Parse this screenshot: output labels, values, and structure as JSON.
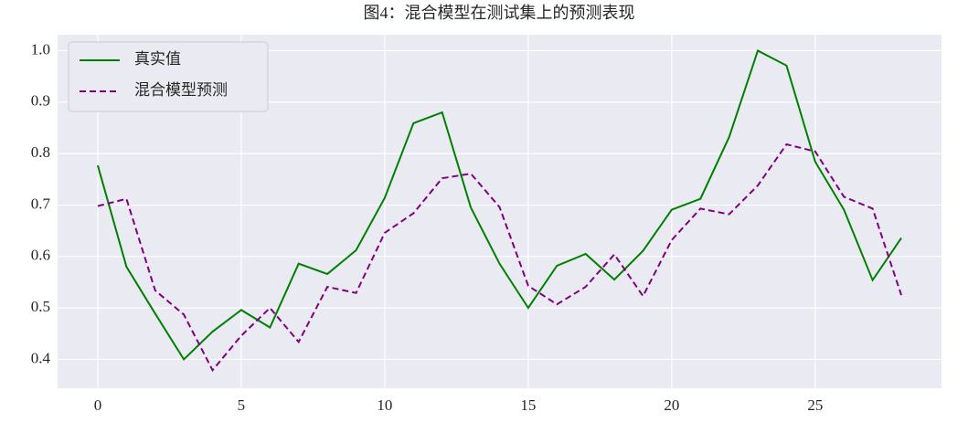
{
  "chart_data": {
    "type": "line",
    "title": "图4：混合模型在测试集上的预测表现",
    "x": [
      0,
      1,
      2,
      3,
      4,
      5,
      6,
      7,
      8,
      9,
      10,
      11,
      12,
      13,
      14,
      15,
      16,
      17,
      18,
      19,
      20,
      21,
      22,
      23,
      24,
      25,
      26,
      27,
      28
    ],
    "series": [
      {
        "name": "真实值",
        "color": "#008000",
        "dash": "solid",
        "values": [
          0.777,
          0.58,
          0.489,
          0.4,
          0.454,
          0.496,
          0.462,
          0.586,
          0.566,
          0.612,
          0.714,
          0.859,
          0.88,
          0.695,
          0.586,
          0.5,
          0.582,
          0.605,
          0.555,
          0.611,
          0.691,
          0.712,
          0.832,
          1.0,
          0.971,
          0.784,
          0.691,
          0.554,
          0.636
        ]
      },
      {
        "name": "混合模型预测",
        "color": "#800080",
        "dash": "dashed",
        "values": [
          0.698,
          0.712,
          0.534,
          0.487,
          0.379,
          0.446,
          0.5,
          0.434,
          0.541,
          0.529,
          0.646,
          0.684,
          0.752,
          0.761,
          0.696,
          0.543,
          0.507,
          0.541,
          0.604,
          0.523,
          0.632,
          0.693,
          0.682,
          0.738,
          0.818,
          0.804,
          0.716,
          0.693,
          0.525
        ]
      }
    ],
    "xlim": [
      -1.4,
      29.4
    ],
    "xticks": [
      0,
      5,
      10,
      15,
      20,
      25
    ],
    "ylim": [
      0.344,
      1.031
    ],
    "yticks": [
      0.4,
      0.5,
      0.6,
      0.7,
      0.8,
      0.9,
      {
        "value": 1,
        "label": "1.0"
      }
    ],
    "grid": true,
    "legend": "upper left"
  }
}
